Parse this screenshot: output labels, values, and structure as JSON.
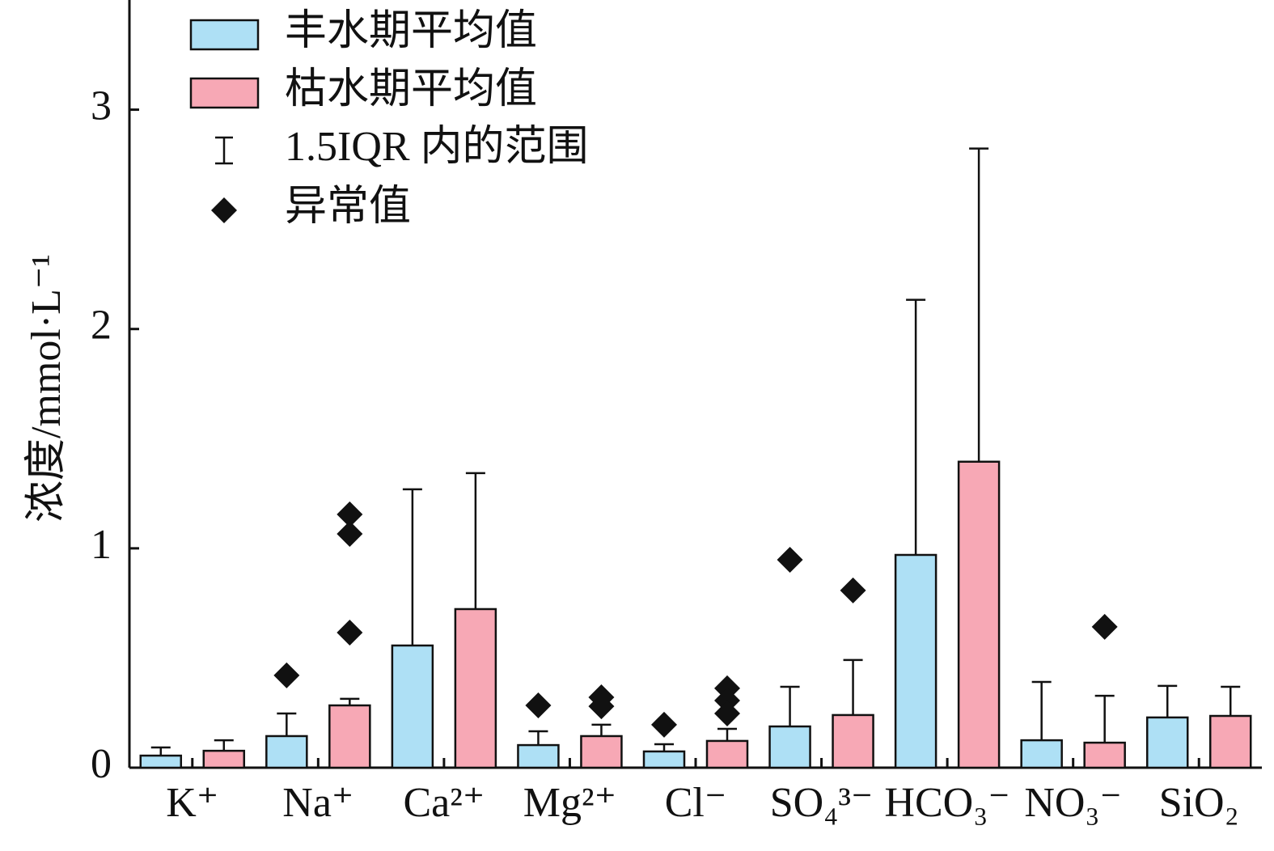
{
  "chart_data": {
    "type": "bar",
    "y_label": "浓度/mmol·L⁻¹",
    "categories": [
      "K⁺",
      "Na⁺",
      "Ca²⁺",
      "Mg²⁺",
      "Cl⁻",
      "SO₄³⁻",
      "HCO₃⁻",
      "NO₃⁻",
      "SiO₂"
    ],
    "series": [
      {
        "name": "丰水期平均值",
        "color": "#aee0f5",
        "values": [
          0.055,
          0.144,
          0.557,
          0.103,
          0.074,
          0.188,
          0.97,
          0.125,
          0.229
        ],
        "whisker": [
          0.092,
          0.247,
          1.269,
          0.166,
          0.107,
          0.369,
          2.133,
          0.391,
          0.373
        ],
        "outliers": [
          [],
          [
            0.421
          ],
          [],
          [
            0.284
          ],
          [
            0.196
          ],
          [
            0.948
          ],
          [],
          [],
          []
        ]
      },
      {
        "name": "枯水期平均值",
        "color": "#f7a8b5",
        "values": [
          0.077,
          0.284,
          0.723,
          0.144,
          0.122,
          0.24,
          1.395,
          0.114,
          0.236
        ],
        "whisker": [
          0.125,
          0.314,
          1.343,
          0.196,
          0.177,
          0.491,
          2.823,
          0.328,
          0.369
        ],
        "outliers": [
          [],
          [
            1.155,
            1.066,
            0.616
          ],
          [],
          [
            0.321,
            0.28
          ],
          [
            0.362,
            0.306,
            0.247
          ],
          [
            0.808
          ],
          [],
          [
            0.642
          ],
          []
        ]
      }
    ],
    "whisker_legend": "1.5IQR 内的范围",
    "outlier_legend": "异常值",
    "ylim": [
      0,
      3.5
    ],
    "yticks": [
      0,
      1,
      2,
      3
    ]
  }
}
